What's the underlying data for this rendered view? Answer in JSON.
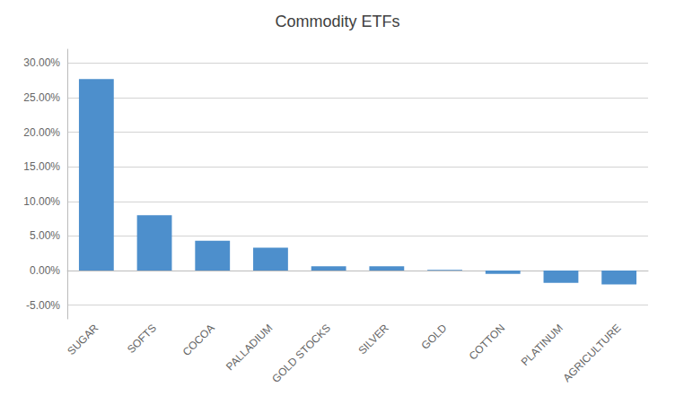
{
  "chart_data": {
    "type": "bar",
    "title": "Commodity ETFs",
    "categories": [
      "SUGAR",
      "SOFTS",
      "COCOA",
      "PALLADIUM",
      "GOLD STOCKS",
      "SILVER",
      "GOLD",
      "COTTON",
      "PLATINUM",
      "AGRICULTURE"
    ],
    "values": [
      0.277,
      0.08,
      0.043,
      0.033,
      0.006,
      0.006,
      0.001,
      -0.005,
      -0.018,
      -0.02
    ],
    "color": "#4d8fcc",
    "ylim": [
      -0.07,
      0.32
    ],
    "yticks": [
      {
        "value": -0.05,
        "label": "-5.00%"
      },
      {
        "value": 0.0,
        "label": "0.00%"
      },
      {
        "value": 0.05,
        "label": "5.00%"
      },
      {
        "value": 0.1,
        "label": "10.00%"
      },
      {
        "value": 0.15,
        "label": "15.00%"
      },
      {
        "value": 0.2,
        "label": "20.00%"
      },
      {
        "value": 0.25,
        "label": "25.00%"
      },
      {
        "value": 0.3,
        "label": "30.00%"
      }
    ],
    "grid": true
  }
}
